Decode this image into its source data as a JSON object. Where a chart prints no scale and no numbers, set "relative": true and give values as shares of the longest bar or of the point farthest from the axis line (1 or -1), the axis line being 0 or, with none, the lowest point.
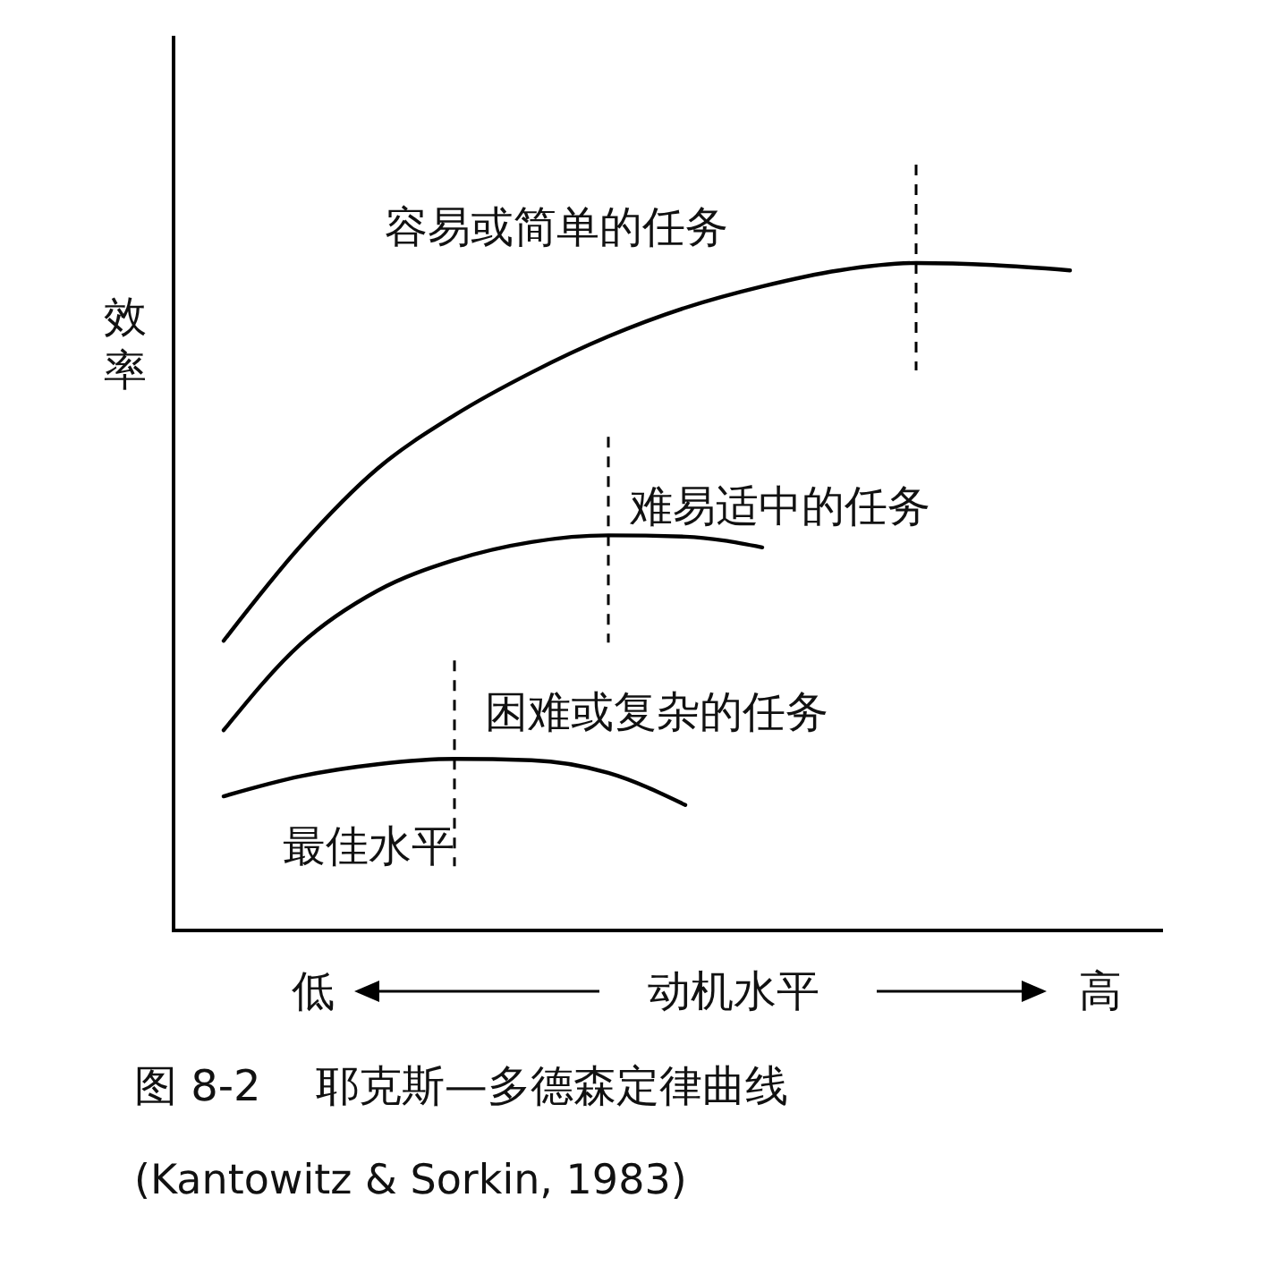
{
  "chart_data": {
    "type": "line",
    "relative": true,
    "title": "图 8-2    耶克斯—多德森定律曲线",
    "ylabel": "效率",
    "xlabel": "动机水平",
    "categories": [
      null,
      null,
      null,
      null,
      null,
      null,
      null,
      null,
      null,
      null,
      null,
      null
    ],
    "series": [
      {
        "name": "容易或简单的任务",
        "color": "#000000",
        "values": [
          0.434,
          0.576,
          0.692,
          0.772,
          0.836,
          0.89,
          0.933,
          0.965,
          0.989,
          1.0,
          0.997,
          0.989
        ]
      },
      {
        "name": "难易适中的任务",
        "color": "#000000",
        "values": [
          0.3,
          0.429,
          0.509,
          0.555,
          0.582,
          0.592,
          0.59,
          0.574,
          null,
          null,
          null,
          null
        ]
      },
      {
        "name": "困难或复杂的任务",
        "color": "#000000",
        "values": [
          0.201,
          0.231,
          0.249,
          0.257,
          0.255,
          0.236,
          0.188,
          null,
          null,
          null,
          null,
          null
        ]
      }
    ],
    "annotations": [
      "最佳水平",
      "低",
      "高",
      "(Kantowitz & Sorkin, 1983)"
    ],
    "marker": "none",
    "line_style": "solid"
  }
}
